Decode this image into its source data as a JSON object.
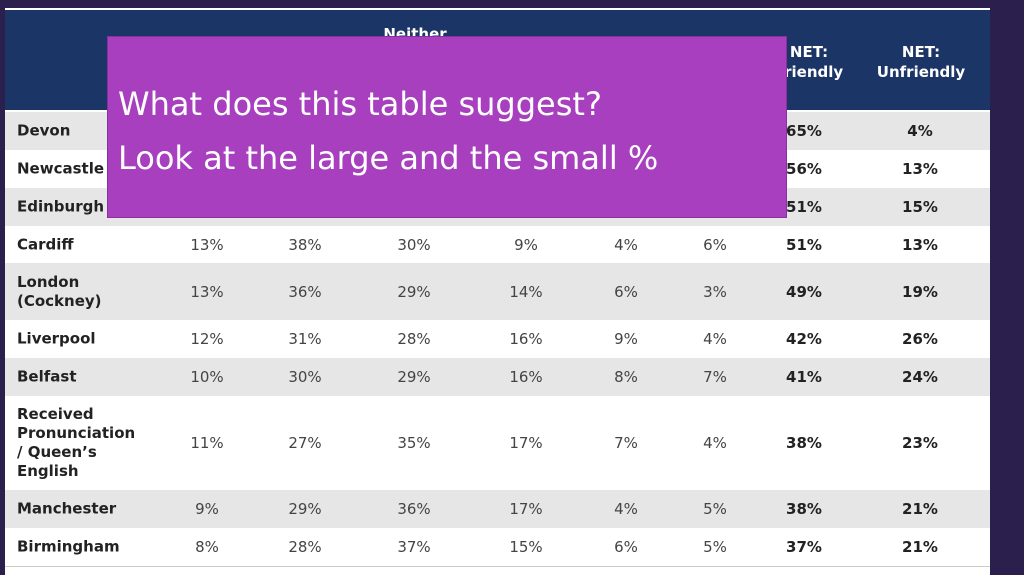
{
  "table": {
    "header": {
      "neither": "Neither",
      "net_friendly": [
        "NET:",
        "Friendly"
      ],
      "net_unfriendly": [
        "NET:",
        "Unfriendly"
      ]
    },
    "rows": [
      {
        "label": [
          "Devon"
        ],
        "cells": [],
        "net": [
          "65%",
          "4%"
        ]
      },
      {
        "label": [
          "Newcastle"
        ],
        "cells": [],
        "net": [
          "56%",
          "13%"
        ]
      },
      {
        "label": [
          "Edinburgh"
        ],
        "cells": [],
        "net": [
          "51%",
          "15%"
        ]
      },
      {
        "label": [
          "Cardiff"
        ],
        "cells": [
          "13%",
          "38%",
          "30%",
          "9%",
          "4%",
          "6%"
        ],
        "net": [
          "51%",
          "13%"
        ]
      },
      {
        "label": [
          "London",
          "(Cockney)"
        ],
        "cells": [
          "13%",
          "36%",
          "29%",
          "14%",
          "6%",
          "3%"
        ],
        "net": [
          "49%",
          "19%"
        ]
      },
      {
        "label": [
          "Liverpool"
        ],
        "cells": [
          "12%",
          "31%",
          "28%",
          "16%",
          "9%",
          "4%"
        ],
        "net": [
          "42%",
          "26%"
        ]
      },
      {
        "label": [
          "Belfast"
        ],
        "cells": [
          "10%",
          "30%",
          "29%",
          "16%",
          "8%",
          "7%"
        ],
        "net": [
          "41%",
          "24%"
        ]
      },
      {
        "label": [
          "Received",
          "Pronunciation",
          "/ Queen’s",
          "English"
        ],
        "cells": [
          "11%",
          "27%",
          "35%",
          "17%",
          "7%",
          "4%"
        ],
        "net": [
          "38%",
          "23%"
        ]
      },
      {
        "label": [
          "Manchester"
        ],
        "cells": [
          "9%",
          "29%",
          "36%",
          "17%",
          "4%",
          "5%"
        ],
        "net": [
          "38%",
          "21%"
        ]
      },
      {
        "label": [
          "Birmingham"
        ],
        "cells": [
          "8%",
          "28%",
          "37%",
          "15%",
          "6%",
          "5%"
        ],
        "net": [
          "37%",
          "21%"
        ]
      }
    ]
  },
  "overlay": {
    "lines": [
      "What does this table suggest?",
      "Look at the large and the small %"
    ]
  }
}
